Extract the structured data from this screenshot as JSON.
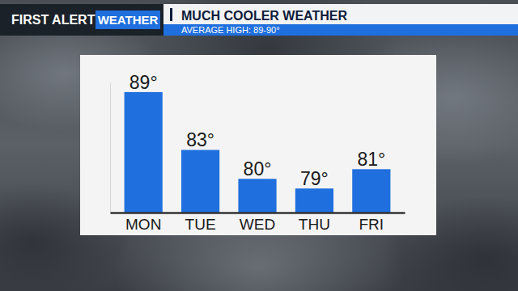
{
  "header": {
    "brand": "FIRST ALERT",
    "brand_tag": "WEATHER"
  },
  "chart_data": {
    "type": "bar",
    "title": "MUCH COOLER WEATHER",
    "subtitle": "AVERAGE HIGH: 89-90°",
    "categories": [
      "MON",
      "TUE",
      "WED",
      "THU",
      "FRI"
    ],
    "values": [
      89,
      83,
      80,
      79,
      81
    ],
    "value_labels": [
      "89°",
      "83°",
      "80°",
      "79°",
      "81°"
    ],
    "color": "#1f6fde",
    "ylim": [
      76.5,
      90
    ],
    "yticks": [],
    "grid": false,
    "data_labels": true,
    "tick_labels": "x"
  }
}
